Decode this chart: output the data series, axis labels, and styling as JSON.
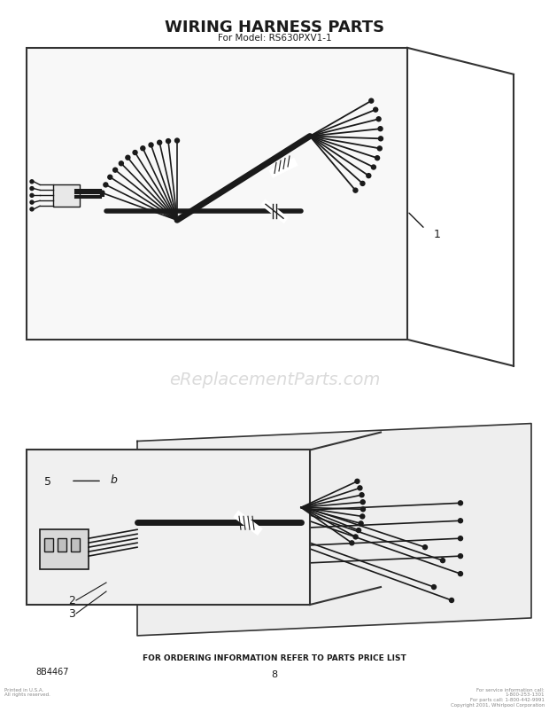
{
  "title": "WIRING HARNESS PARTS",
  "subtitle": "For Model: RS630PXV1-1",
  "bg_color": "#ffffff",
  "diagram_bg": "#f5f5f5",
  "line_color": "#1a1a1a",
  "border_color": "#333333",
  "watermark": "eReplacementParts.com",
  "watermark_color": "#cccccc",
  "footer_center": "FOR ORDERING INFORMATION REFER TO PARTS PRICE LIST",
  "footer_left": "8B4467",
  "footer_page": "8",
  "label_1": "1",
  "label_2": "2",
  "label_3": "3",
  "label_5": "5",
  "part_note_left": "Printed in U.S.A.\nAll rights reserved.",
  "part_note_right": "For service information call:\n1-800-253-1301\nFor parts call: 1-800-442-9991\nCopyright 2001, Whirlpool Corporation"
}
